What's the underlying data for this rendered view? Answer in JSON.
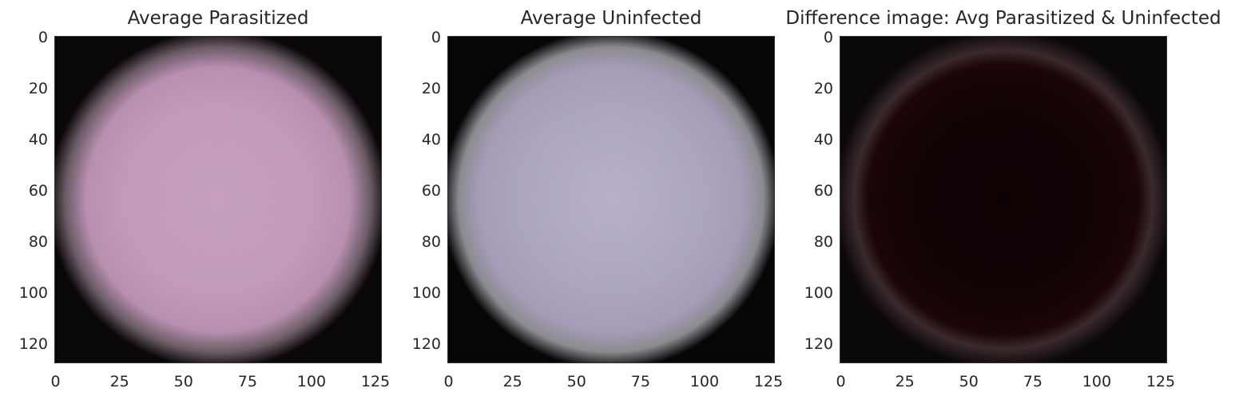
{
  "panels": [
    {
      "title": "Average Parasitized",
      "colors": {
        "center": "#c59fbf",
        "mid": "#b88fb0",
        "edge": "#0a0707",
        "halo": "#6b5c66"
      }
    },
    {
      "title": "Average Uninfected",
      "colors": {
        "center": "#b7b0c8",
        "mid": "#a59db8",
        "edge": "#060606",
        "halo": "#8c8a90"
      }
    },
    {
      "title": "Difference image: Avg Parasitized & Uninfected",
      "colors": {
        "center": "#0d0203",
        "mid": "#1c0607",
        "edge": "#0a0707",
        "halo": "#3a2a2c"
      }
    }
  ],
  "axes": {
    "y_ticks": [
      "0",
      "20",
      "40",
      "60",
      "80",
      "100",
      "120"
    ],
    "x_ticks": [
      "0",
      "25",
      "50",
      "75",
      "100",
      "125"
    ]
  }
}
